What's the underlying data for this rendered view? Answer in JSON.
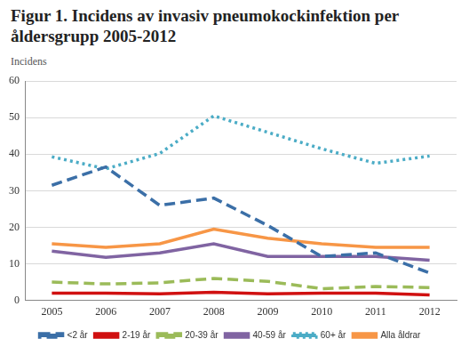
{
  "chart_data": {
    "type": "line",
    "title": "Figur 1. Incidens av invasiv pneumokockinfektion per åldersgrupp 2005-2012",
    "y_label": "Incidens",
    "categories": [
      "2005",
      "2006",
      "2007",
      "2008",
      "2009",
      "2010",
      "2011",
      "2012"
    ],
    "series": [
      {
        "name": "<2 år",
        "color": "#3b6fa7",
        "line_style": "dashed",
        "values": [
          31.5,
          36.5,
          26,
          28,
          20.5,
          12,
          13,
          7.5
        ]
      },
      {
        "name": "2-19 år",
        "color": "#d01010",
        "line_style": "solid",
        "values": [
          2,
          2,
          1.8,
          2.2,
          1.8,
          2,
          2,
          1.5
        ]
      },
      {
        "name": "20-39 år",
        "color": "#9bbb59",
        "line_style": "dashed",
        "values": [
          5,
          4.5,
          4.8,
          6,
          5.2,
          3.2,
          3.8,
          3.5
        ]
      },
      {
        "name": "40-59 år",
        "color": "#8064a2",
        "line_style": "solid",
        "values": [
          13.5,
          11.8,
          13,
          15.5,
          12,
          12,
          12,
          11
        ]
      },
      {
        "name": "60+ år",
        "color": "#4bacc6",
        "line_style": "dotted",
        "values": [
          39.3,
          36,
          40.2,
          50.5,
          46,
          41.5,
          37.5,
          39.5
        ]
      },
      {
        "name": "Alla åldrar",
        "color": "#f79646",
        "line_style": "solid",
        "values": [
          15.5,
          14.5,
          15.5,
          19.5,
          17,
          15.5,
          14.5,
          14.5
        ]
      }
    ],
    "ylim": [
      0,
      60
    ],
    "yticks": [
      0,
      10,
      20,
      30,
      40,
      50,
      60
    ],
    "grid": true,
    "legend": "bottom"
  }
}
